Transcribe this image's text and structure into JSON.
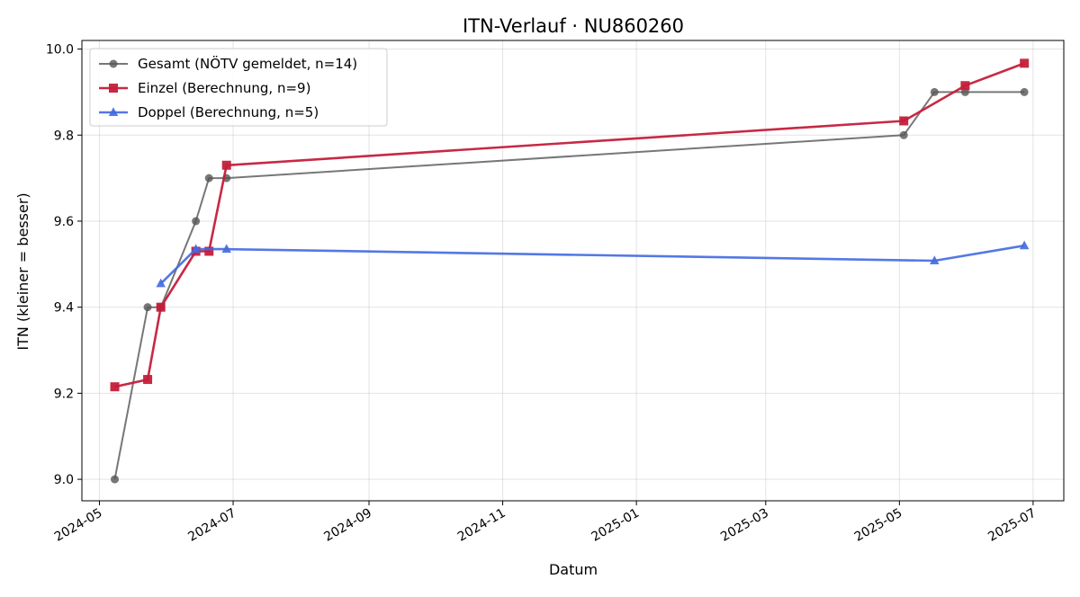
{
  "chart_data": {
    "type": "line",
    "title": "ITN-Verlauf · NU860260",
    "xlabel": "Datum",
    "ylabel": "ITN  (kleiner = besser)",
    "x_type": "date",
    "xlim": [
      "2024-04-23",
      "2025-07-15"
    ],
    "ylim": [
      8.95,
      10.02
    ],
    "x_ticks": [
      "2024-05-01",
      "2024-07-01",
      "2024-09-01",
      "2024-11-01",
      "2025-01-01",
      "2025-03-01",
      "2025-05-01",
      "2025-07-01"
    ],
    "x_tick_labels": [
      "2024-05",
      "2024-07",
      "2024-09",
      "2024-11",
      "2025-01",
      "2025-03",
      "2025-05",
      "2025-07"
    ],
    "y_ticks": [
      9.0,
      9.2,
      9.4,
      9.6,
      9.8,
      10.0
    ],
    "y_tick_labels": [
      "9.0",
      "9.2",
      "9.4",
      "9.6",
      "9.8",
      "10.0"
    ],
    "grid": true,
    "legend_position": "upper-left",
    "series": [
      {
        "name": "Gesamt (NÖTV gemeldet, n=14)",
        "color": "#555555",
        "marker": "circle",
        "points": [
          {
            "x": "2024-05-08",
            "y": 9.0
          },
          {
            "x": "2024-05-23",
            "y": 9.4
          },
          {
            "x": "2024-05-29",
            "y": 9.4
          },
          {
            "x": "2024-06-14",
            "y": 9.6
          },
          {
            "x": "2024-06-20",
            "y": 9.7
          },
          {
            "x": "2024-06-28",
            "y": 9.7
          },
          {
            "x": "2025-05-03",
            "y": 9.8
          },
          {
            "x": "2025-05-17",
            "y": 9.9
          },
          {
            "x": "2025-05-31",
            "y": 9.9
          },
          {
            "x": "2025-06-27",
            "y": 9.9
          }
        ]
      },
      {
        "name": "Einzel (Berechnung, n=9)",
        "color": "#c41e3a",
        "marker": "square",
        "points": [
          {
            "x": "2024-05-08",
            "y": 9.215
          },
          {
            "x": "2024-05-23",
            "y": 9.232
          },
          {
            "x": "2024-05-29",
            "y": 9.4
          },
          {
            "x": "2024-06-14",
            "y": 9.53
          },
          {
            "x": "2024-06-20",
            "y": 9.53
          },
          {
            "x": "2024-06-28",
            "y": 9.73
          },
          {
            "x": "2025-05-03",
            "y": 9.833
          },
          {
            "x": "2025-05-31",
            "y": 9.915
          },
          {
            "x": "2025-06-27",
            "y": 9.967
          }
        ]
      },
      {
        "name": "Doppel (Berechnung, n=5)",
        "color": "#4169e1",
        "marker": "triangle",
        "points": [
          {
            "x": "2024-05-29",
            "y": 9.455
          },
          {
            "x": "2024-06-14",
            "y": 9.535
          },
          {
            "x": "2024-06-28",
            "y": 9.535
          },
          {
            "x": "2025-05-17",
            "y": 9.508
          },
          {
            "x": "2025-06-27",
            "y": 9.543
          }
        ]
      }
    ]
  }
}
